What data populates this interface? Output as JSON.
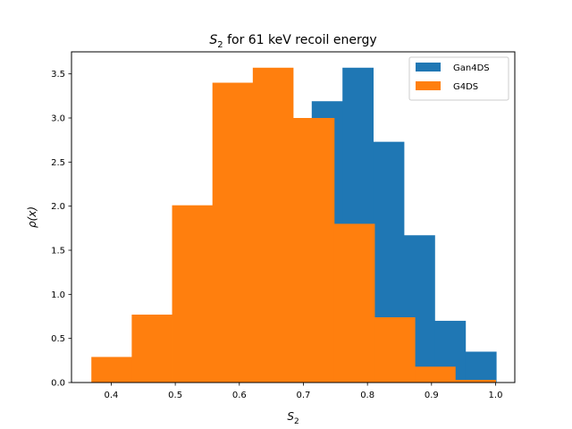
{
  "chart_data": {
    "type": "histogram",
    "title_main": "S",
    "title_sub": "2",
    "title_rest": " for 61 keV recoil energy",
    "xlabel_main": "S",
    "xlabel_sub": "2",
    "ylabel": "ρ(x)",
    "xlim": [
      0.338,
      1.03
    ],
    "ylim": [
      0,
      3.75
    ],
    "xticks": [
      0.4,
      0.5,
      0.6,
      0.7,
      0.8,
      0.9,
      1.0
    ],
    "xtick_labels": [
      "0.4",
      "0.5",
      "0.6",
      "0.7",
      "0.8",
      "0.9",
      "1.0"
    ],
    "yticks": [
      0.0,
      0.5,
      1.0,
      1.5,
      2.0,
      2.5,
      3.0,
      3.5
    ],
    "ytick_labels": [
      "0.0",
      "0.5",
      "1.0",
      "1.5",
      "2.0",
      "2.5",
      "3.0",
      "3.5"
    ],
    "legend_position": "top-right",
    "series": [
      {
        "name": "Gan4DS",
        "color": "#1f77b4",
        "bin_edges": [
          0.521,
          0.569,
          0.617,
          0.665,
          0.713,
          0.761,
          0.809,
          0.857,
          0.905,
          0.953,
          1.001
        ],
        "values": [
          0.28,
          0.82,
          1.97,
          2.92,
          3.19,
          3.57,
          2.73,
          1.67,
          0.7,
          0.35
        ]
      },
      {
        "name": "G4DS",
        "color": "#ff7f0e",
        "bin_edges": [
          0.369,
          0.432,
          0.495,
          0.558,
          0.621,
          0.684,
          0.748,
          0.811,
          0.874,
          0.937,
          1.0
        ],
        "values": [
          0.29,
          0.77,
          2.01,
          3.4,
          3.57,
          3.0,
          1.8,
          0.74,
          0.18,
          0.03
        ]
      }
    ]
  }
}
